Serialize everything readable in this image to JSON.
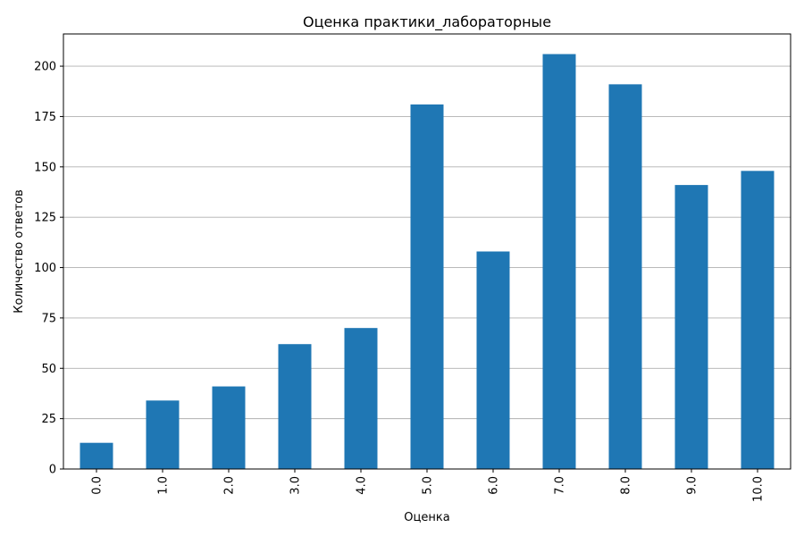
{
  "chart_data": {
    "type": "bar",
    "title": "Оценка практики_лабораторные",
    "xlabel": "Оценка",
    "ylabel": "Количество ответов",
    "categories": [
      "0.0",
      "1.0",
      "2.0",
      "3.0",
      "4.0",
      "5.0",
      "6.0",
      "7.0",
      "8.0",
      "9.0",
      "10.0"
    ],
    "values": [
      13,
      34,
      41,
      62,
      70,
      181,
      108,
      206,
      191,
      141,
      148
    ],
    "ylim": [
      0,
      216
    ],
    "yticks": [
      0,
      25,
      50,
      75,
      100,
      125,
      150,
      175,
      200
    ],
    "grid": "horizontal",
    "x_tick_rotation": "vertical",
    "bar_color": "#1f77b4"
  }
}
